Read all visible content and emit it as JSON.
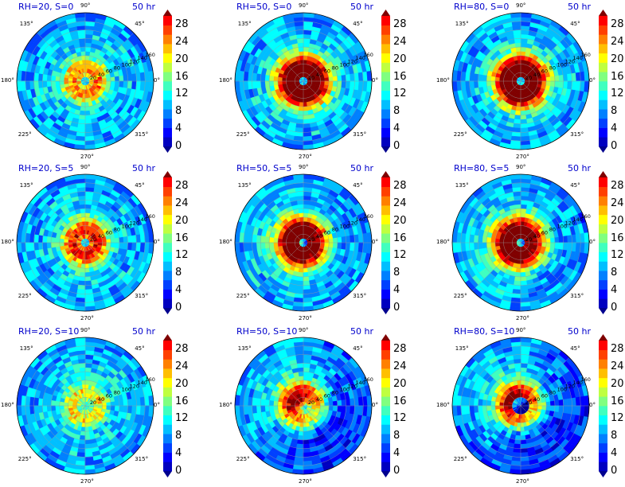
{
  "colors": {
    "levels": [
      "#00008f",
      "#0000c0",
      "#0000ff",
      "#0040ff",
      "#0080ff",
      "#00bfff",
      "#00ffff",
      "#40ffbf",
      "#80ff80",
      "#bfff40",
      "#ffff00",
      "#ffbf00",
      "#ff8000",
      "#ff4000",
      "#ff0000",
      "#c00000",
      "#800000"
    ],
    "title": "#0000cc"
  },
  "angle_labels": [
    "90°",
    "45°",
    "0°",
    "315°",
    "270°",
    "225°",
    "180°",
    "135°"
  ],
  "radial_labels": [
    "20",
    "40",
    "60",
    "80",
    "100",
    "120",
    "140",
    "160"
  ],
  "colorbar_ticks": [
    "0",
    "4",
    "8",
    "12",
    "16",
    "20",
    "24",
    "28"
  ],
  "chart_data": [
    {
      "type": "heatmap",
      "title": "RH=20, S=0",
      "time": "50 hr",
      "intensity": 0.35,
      "eye": "weak",
      "asymmetry": "none",
      "colorbar": {
        "min": 0,
        "max": 28,
        "ticks": [
          0,
          4,
          8,
          12,
          16,
          20,
          24,
          28
        ]
      }
    },
    {
      "type": "heatmap",
      "title": "RH=50, S=0",
      "time": "50 hr",
      "intensity": 0.95,
      "eye": "strong",
      "asymmetry": "none",
      "colorbar": {
        "min": 0,
        "max": 28,
        "ticks": [
          0,
          4,
          8,
          12,
          16,
          20,
          24,
          28
        ]
      }
    },
    {
      "type": "heatmap",
      "title": "RH=80, S=0",
      "time": "50 hr",
      "intensity": 0.95,
      "eye": "strong",
      "asymmetry": "none",
      "colorbar": {
        "min": 0,
        "max": 28,
        "ticks": [
          0,
          4,
          8,
          12,
          16,
          20,
          24,
          28
        ]
      }
    },
    {
      "type": "heatmap",
      "title": "RH=20, S=5",
      "time": "50 hr",
      "intensity": 0.5,
      "eye": "weak",
      "asymmetry": "none",
      "colorbar": {
        "min": 0,
        "max": 28,
        "ticks": [
          0,
          4,
          8,
          12,
          16,
          20,
          24,
          28
        ]
      }
    },
    {
      "type": "heatmap",
      "title": "RH=50, S=5",
      "time": "50 hr",
      "intensity": 0.85,
      "eye": "strong",
      "asymmetry": "left",
      "colorbar": {
        "min": 0,
        "max": 28,
        "ticks": [
          0,
          4,
          8,
          12,
          16,
          20,
          24,
          28
        ]
      }
    },
    {
      "type": "heatmap",
      "title": "RH=80, S=5",
      "time": "50 hr",
      "intensity": 0.85,
      "eye": "strong",
      "asymmetry": "left",
      "colorbar": {
        "min": 0,
        "max": 28,
        "ticks": [
          0,
          4,
          8,
          12,
          16,
          20,
          24,
          28
        ]
      }
    },
    {
      "type": "heatmap",
      "title": "RH=20, S=10",
      "time": "50 hr",
      "intensity": 0.2,
      "eye": "none",
      "asymmetry": "none",
      "colorbar": {
        "min": 0,
        "max": 28,
        "ticks": [
          0,
          4,
          8,
          12,
          16,
          20,
          24,
          28
        ]
      }
    },
    {
      "type": "heatmap",
      "title": "RH=50, S=10",
      "time": "50 hr",
      "intensity": 0.5,
      "eye": "none",
      "asymmetry": "upper-left",
      "colorbar": {
        "min": 0,
        "max": 28,
        "ticks": [
          0,
          4,
          8,
          12,
          16,
          20,
          24,
          28
        ]
      }
    },
    {
      "type": "heatmap",
      "title": "RH=80, S=10",
      "time": "50 hr",
      "intensity": 0.55,
      "eye": "blue-center",
      "asymmetry": "upper-left",
      "colorbar": {
        "min": 0,
        "max": 28,
        "ticks": [
          0,
          4,
          8,
          12,
          16,
          20,
          24,
          28
        ]
      }
    }
  ]
}
